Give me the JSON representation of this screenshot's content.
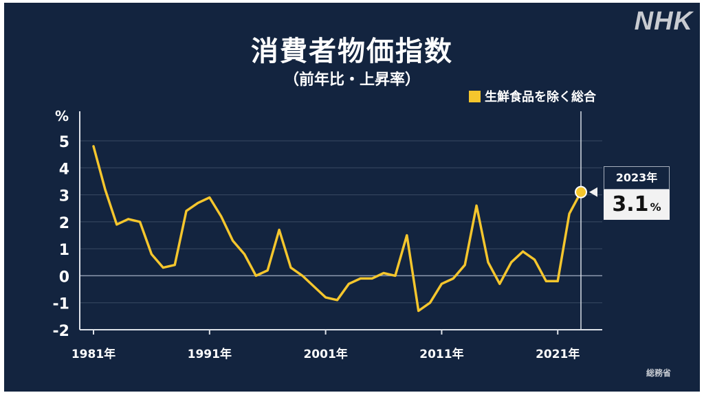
{
  "title": "消費者物価指数",
  "subtitle": "（前年比・上昇率）",
  "logo": "NHK",
  "source": "総務省",
  "callout": {
    "year": "2023年",
    "value": "3.1",
    "unit": "%"
  },
  "colors": {
    "background": "#13243f",
    "line": "#f5c62d",
    "grid": "#3a4a63",
    "axis": "#dfe3ea"
  },
  "chart_data": {
    "type": "line",
    "title": "消費者物価指数",
    "subtitle": "（前年比・上昇率）",
    "ylabel": "%",
    "ylim": [
      -2,
      5
    ],
    "yticks": [
      5,
      4,
      3,
      2,
      1,
      0,
      -1,
      -2
    ],
    "xlim": [
      1981,
      2023
    ],
    "xticks": [
      {
        "value": 1981,
        "label": "1981年"
      },
      {
        "value": 1991,
        "label": "1991年"
      },
      {
        "value": 2001,
        "label": "2001年"
      },
      {
        "value": 2011,
        "label": "2011年"
      },
      {
        "value": 2021,
        "label": "2021年"
      }
    ],
    "legend": {
      "position": "top-right",
      "label": "生鮮食品を除く総合"
    },
    "grid": true,
    "series": [
      {
        "name": "生鮮食品を除く総合",
        "x": [
          1981,
          1982,
          1983,
          1984,
          1985,
          1986,
          1987,
          1988,
          1989,
          1990,
          1991,
          1992,
          1993,
          1994,
          1995,
          1996,
          1997,
          1998,
          1999,
          2000,
          2001,
          2002,
          2003,
          2004,
          2005,
          2006,
          2007,
          2008,
          2009,
          2010,
          2011,
          2012,
          2013,
          2014,
          2015,
          2016,
          2017,
          2018,
          2019,
          2020,
          2021,
          2022,
          2023
        ],
        "y": [
          4.8,
          3.2,
          1.9,
          2.1,
          2.0,
          0.8,
          0.3,
          0.4,
          2.4,
          2.7,
          2.9,
          2.2,
          1.3,
          0.8,
          0.0,
          0.2,
          1.7,
          0.3,
          0.0,
          -0.4,
          -0.8,
          -0.9,
          -0.3,
          -0.1,
          -0.1,
          0.1,
          0.0,
          1.5,
          -1.3,
          -1.0,
          -0.3,
          -0.1,
          0.4,
          2.6,
          0.5,
          -0.3,
          0.5,
          0.9,
          0.6,
          -0.2,
          -0.2,
          2.3,
          3.1
        ]
      }
    ],
    "highlight": {
      "x": 2023,
      "y": 3.1,
      "label": "2023年",
      "value": "3.1",
      "unit": "%"
    }
  }
}
